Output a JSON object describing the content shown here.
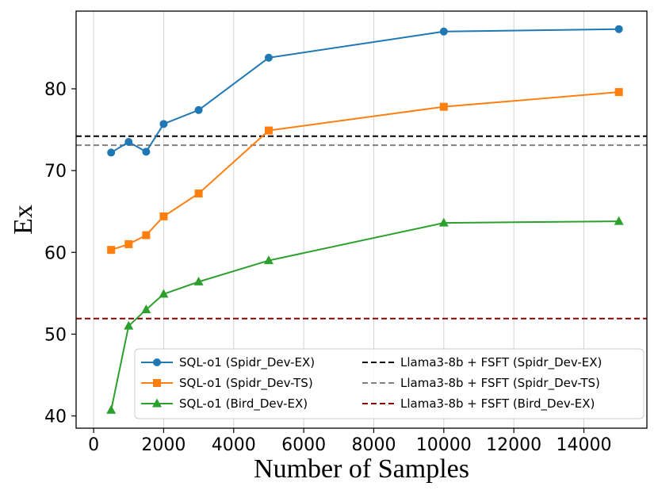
{
  "chart_data": {
    "type": "line",
    "title": "",
    "xlabel": "Number of Samples",
    "ylabel": "Ex",
    "xlim": [
      -500,
      15800
    ],
    "ylim": [
      38.5,
      89.5
    ],
    "x_ticks": [
      0,
      2000,
      4000,
      6000,
      8000,
      10000,
      12000,
      14000
    ],
    "y_ticks": [
      40,
      50,
      60,
      70,
      80
    ],
    "grid": "vertical",
    "legend_position": "lower-right",
    "series": [
      {
        "name": "SQL-o1 (Spidr_Dev-EX)",
        "color": "#1f77b4",
        "marker": "circle",
        "x": [
          500,
          1000,
          1500,
          2000,
          3000,
          5000,
          10000,
          15000
        ],
        "y": [
          72.2,
          73.5,
          72.3,
          75.7,
          77.4,
          83.8,
          87.0,
          87.3
        ]
      },
      {
        "name": "SQL-o1 (Spidr_Dev-TS)",
        "color": "#ff7f0e",
        "marker": "square",
        "x": [
          500,
          1000,
          1500,
          2000,
          3000,
          5000,
          10000,
          15000
        ],
        "y": [
          60.3,
          61.0,
          62.1,
          64.4,
          67.2,
          74.9,
          77.8,
          79.6
        ]
      },
      {
        "name": "SQL-o1 (Bird_Dev-EX)",
        "color": "#2ca02c",
        "marker": "triangle",
        "x": [
          500,
          1000,
          1500,
          2000,
          3000,
          5000,
          10000,
          15000
        ],
        "y": [
          40.7,
          51.0,
          53.0,
          54.9,
          56.4,
          59.0,
          63.6,
          63.8
        ]
      }
    ],
    "reference_lines": [
      {
        "name": "Llama3-8b + FSFT (Spidr_Dev-EX)",
        "y": 74.2,
        "color": "#000000"
      },
      {
        "name": "Llama3-8b + FSFT (Spidr_Dev-TS)",
        "y": 73.1,
        "color": "#808080"
      },
      {
        "name": "Llama3-8b + FSFT (Bird_Dev-EX)",
        "y": 51.9,
        "color": "#8b0000"
      }
    ]
  }
}
